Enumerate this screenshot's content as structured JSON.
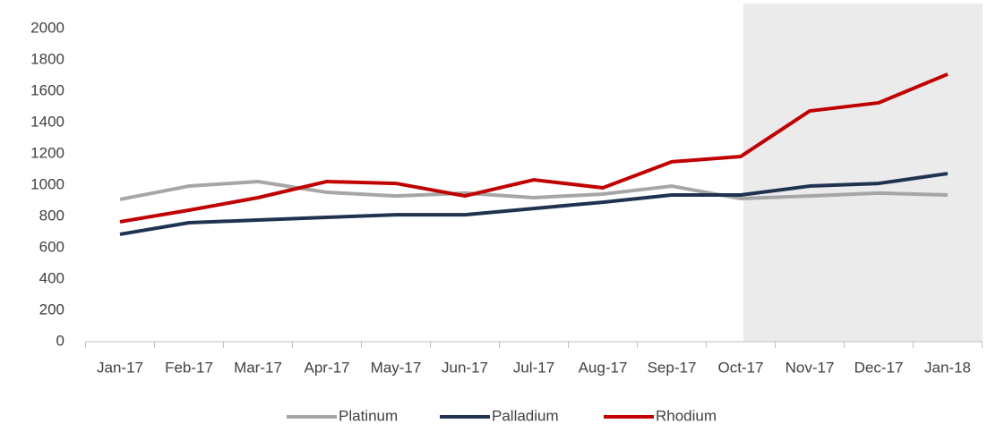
{
  "chart_data": {
    "type": "line",
    "categories": [
      "Jan-17",
      "Feb-17",
      "Mar-17",
      "Apr-17",
      "May-17",
      "Jun-17",
      "Jul-17",
      "Aug-17",
      "Sep-17",
      "Oct-17",
      "Nov-17",
      "Dec-17",
      "Jan-18"
    ],
    "series": [
      {
        "name": "Platinum",
        "color": "#a6a6a6",
        "values": [
          909,
          994,
          1023,
          954,
          931,
          949,
          920,
          943,
          994,
          914,
          931,
          949,
          937
        ]
      },
      {
        "name": "Palladium",
        "color": "#1f3350",
        "values": [
          686,
          760,
          777,
          794,
          811,
          811,
          851,
          891,
          937,
          937,
          994,
          1011,
          1074
        ]
      },
      {
        "name": "Rhodium",
        "color": "#c00000",
        "values": [
          766,
          840,
          920,
          1023,
          1011,
          931,
          1034,
          983,
          1149,
          1183,
          1474,
          1526,
          1709
        ]
      }
    ],
    "ylim": [
      0,
      2000
    ],
    "yticks": [
      0,
      200,
      400,
      600,
      800,
      1000,
      1200,
      1400,
      1600,
      1800,
      2000
    ],
    "grid": false,
    "legend": "bottom"
  }
}
